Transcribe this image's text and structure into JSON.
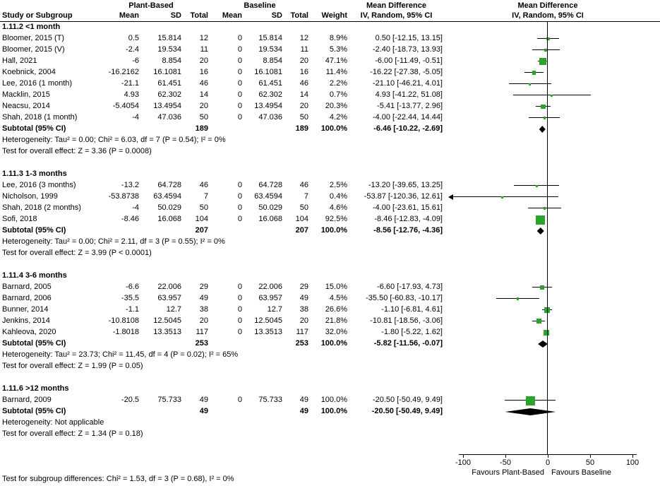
{
  "headers": {
    "group1": "Plant-Based",
    "group2": "Baseline",
    "md1": "Mean Difference",
    "md2": "Mean Difference",
    "study": "Study or Subgroup",
    "mean1": "Mean",
    "sd1": "SD",
    "total1": "Total",
    "mean2": "Mean",
    "sd2": "SD",
    "total2": "Total",
    "weight": "Weight",
    "ci1": "IV, Random, 95% CI",
    "ci2": "IV, Random, 95% CI"
  },
  "axis": {
    "ticks": [
      -100,
      -50,
      0,
      50,
      100
    ],
    "label_left": "Favours Plant-Based",
    "label_right": "Favours Baseline"
  },
  "footer": "Test for subgroup differences: Chi² = 1.53, df = 3 (P = 0.68), I² = 0%",
  "colors": {
    "square": "#2CA32C",
    "diamond": "#000000",
    "ci_line": "#000000",
    "axis": "#000000"
  },
  "chart_data": {
    "type": "forest",
    "effect_measure": "Mean Difference IV, Random, 95% CI",
    "x_range": [
      -100,
      100
    ],
    "subgroups": [
      {
        "label": "1.11.2 <1 month",
        "studies": [
          {
            "name": "Bloomer, 2015 (T)",
            "mean1": "0.5",
            "sd1": "15.814",
            "n1": "12",
            "mean2": "0",
            "sd2": "15.814",
            "n2": "12",
            "weight": "8.9%",
            "ci_text": "0.50 [-12.15, 13.15]",
            "md": 0.5,
            "lo": -12.15,
            "hi": 13.15,
            "w": 8.9
          },
          {
            "name": "Bloomer, 2015 (V)",
            "mean1": "-2.4",
            "sd1": "19.534",
            "n1": "11",
            "mean2": "0",
            "sd2": "19.534",
            "n2": "11",
            "weight": "5.3%",
            "ci_text": "-2.40 [-18.73, 13.93]",
            "md": -2.4,
            "lo": -18.73,
            "hi": 13.93,
            "w": 5.3
          },
          {
            "name": "Hall, 2021",
            "mean1": "-6",
            "sd1": "8.854",
            "n1": "20",
            "mean2": "0",
            "sd2": "8.854",
            "n2": "20",
            "weight": "47.1%",
            "ci_text": "-6.00 [-11.49, -0.51]",
            "md": -6.0,
            "lo": -11.49,
            "hi": -0.51,
            "w": 47.1
          },
          {
            "name": "Koebnick, 2004",
            "mean1": "-16.2162",
            "sd1": "16.1081",
            "n1": "16",
            "mean2": "0",
            "sd2": "16.1081",
            "n2": "16",
            "weight": "11.4%",
            "ci_text": "-16.22 [-27.38, -5.05]",
            "md": -16.22,
            "lo": -27.38,
            "hi": -5.05,
            "w": 11.4
          },
          {
            "name": "Lee, 2016 (1 month)",
            "mean1": "-21.1",
            "sd1": "61.451",
            "n1": "46",
            "mean2": "0",
            "sd2": "61.451",
            "n2": "46",
            "weight": "2.2%",
            "ci_text": "-21.10 [-46.21, 4.01]",
            "md": -21.1,
            "lo": -46.21,
            "hi": 4.01,
            "w": 2.2
          },
          {
            "name": "Macklin, 2015",
            "mean1": "4.93",
            "sd1": "62.302",
            "n1": "14",
            "mean2": "0",
            "sd2": "62.302",
            "n2": "14",
            "weight": "0.7%",
            "ci_text": "4.93 [-41.22, 51.08]",
            "md": 4.93,
            "lo": -41.22,
            "hi": 51.08,
            "w": 0.7
          },
          {
            "name": "Neacsu, 2014",
            "mean1": "-5.4054",
            "sd1": "13.4954",
            "n1": "20",
            "mean2": "0",
            "sd2": "13.4954",
            "n2": "20",
            "weight": "20.3%",
            "ci_text": "-5.41 [-13.77, 2.96]",
            "md": -5.41,
            "lo": -13.77,
            "hi": 2.96,
            "w": 20.3
          },
          {
            "name": "Shah, 2018 (1 month)",
            "mean1": "-4",
            "sd1": "47.036",
            "n1": "50",
            "mean2": "0",
            "sd2": "47.036",
            "n2": "50",
            "weight": "4.2%",
            "ci_text": "-4.00 [-22.44, 14.44]",
            "md": -4.0,
            "lo": -22.44,
            "hi": 14.44,
            "w": 4.2
          }
        ],
        "subtotal": {
          "label": "Subtotal (95% CI)",
          "n1": "189",
          "n2": "189",
          "weight": "100.0%",
          "ci_text": "-6.46 [-10.22, -2.69]",
          "md": -6.46,
          "lo": -10.22,
          "hi": -2.69
        },
        "heterogeneity": "Heterogeneity: Tau² = 0.00; Chi² = 6.03, df = 7 (P = 0.54); I² = 0%",
        "test": "Test for overall effect: Z = 3.36 (P = 0.0008)"
      },
      {
        "label": "1.11.3 1-3 months",
        "studies": [
          {
            "name": "Lee, 2016 (3 months)",
            "mean1": "-13.2",
            "sd1": "64.728",
            "n1": "46",
            "mean2": "0",
            "sd2": "64.728",
            "n2": "46",
            "weight": "2.5%",
            "ci_text": "-13.20 [-39.65, 13.25]",
            "md": -13.2,
            "lo": -39.65,
            "hi": 13.25,
            "w": 2.5
          },
          {
            "name": "Nicholson, 1999",
            "mean1": "-53.8738",
            "sd1": "63.4594",
            "n1": "7",
            "mean2": "0",
            "sd2": "63.4594",
            "n2": "7",
            "weight": "0.4%",
            "ci_text": "-53.87 [-120.36, 12.61]",
            "md": -53.87,
            "lo": -120.36,
            "hi": 12.61,
            "w": 0.4
          },
          {
            "name": "Shah, 2018 (2 months)",
            "mean1": "-4",
            "sd1": "50.029",
            "n1": "50",
            "mean2": "0",
            "sd2": "50.029",
            "n2": "50",
            "weight": "4.6%",
            "ci_text": "-4.00 [-23.61, 15.61]",
            "md": -4.0,
            "lo": -23.61,
            "hi": 15.61,
            "w": 4.6
          },
          {
            "name": "Sofi, 2018",
            "mean1": "-8.46",
            "sd1": "16.068",
            "n1": "104",
            "mean2": "0",
            "sd2": "16.068",
            "n2": "104",
            "weight": "92.5%",
            "ci_text": "-8.46 [-12.83, -4.09]",
            "md": -8.46,
            "lo": -12.83,
            "hi": -4.09,
            "w": 92.5
          }
        ],
        "subtotal": {
          "label": "Subtotal (95% CI)",
          "n1": "207",
          "n2": "207",
          "weight": "100.0%",
          "ci_text": "-8.56 [-12.76, -4.36]",
          "md": -8.56,
          "lo": -12.76,
          "hi": -4.36
        },
        "heterogeneity": "Heterogeneity: Tau² = 0.00; Chi² = 2.11, df = 3 (P = 0.55); I² = 0%",
        "test": "Test for overall effect: Z = 3.99 (P < 0.0001)"
      },
      {
        "label": "1.11.4 3-6 months",
        "studies": [
          {
            "name": "Barnard, 2005",
            "mean1": "-6.6",
            "sd1": "22.006",
            "n1": "29",
            "mean2": "0",
            "sd2": "22.006",
            "n2": "29",
            "weight": "15.0%",
            "ci_text": "-6.60 [-17.93, 4.73]",
            "md": -6.6,
            "lo": -17.93,
            "hi": 4.73,
            "w": 15.0
          },
          {
            "name": "Barnard, 2006",
            "mean1": "-35.5",
            "sd1": "63.957",
            "n1": "49",
            "mean2": "0",
            "sd2": "63.957",
            "n2": "49",
            "weight": "4.5%",
            "ci_text": "-35.50 [-60.83, -10.17]",
            "md": -35.5,
            "lo": -60.83,
            "hi": -10.17,
            "w": 4.5
          },
          {
            "name": "Bunner, 2014",
            "mean1": "-1.1",
            "sd1": "12.7",
            "n1": "38",
            "mean2": "0",
            "sd2": "12.7",
            "n2": "38",
            "weight": "26.6%",
            "ci_text": "-1.10 [-6.81, 4.61]",
            "md": -1.1,
            "lo": -6.81,
            "hi": 4.61,
            "w": 26.6
          },
          {
            "name": "Jenkins, 2014",
            "mean1": "-10.8108",
            "sd1": "12.5045",
            "n1": "20",
            "mean2": "0",
            "sd2": "12.5045",
            "n2": "20",
            "weight": "21.8%",
            "ci_text": "-10.81 [-18.56, -3.06]",
            "md": -10.81,
            "lo": -18.56,
            "hi": -3.06,
            "w": 21.8
          },
          {
            "name": "Kahleova, 2020",
            "mean1": "-1.8018",
            "sd1": "13.3513",
            "n1": "117",
            "mean2": "0",
            "sd2": "13.3513",
            "n2": "117",
            "weight": "32.0%",
            "ci_text": "-1.80 [-5.22, 1.62]",
            "md": -1.8,
            "lo": -5.22,
            "hi": 1.62,
            "w": 32.0
          }
        ],
        "subtotal": {
          "label": "Subtotal (95% CI)",
          "n1": "253",
          "n2": "253",
          "weight": "100.0%",
          "ci_text": "-5.82 [-11.56, -0.07]",
          "md": -5.82,
          "lo": -11.56,
          "hi": -0.07
        },
        "heterogeneity": "Heterogeneity: Tau² = 23.73; Chi² = 11.45, df = 4 (P = 0.02); I² = 65%",
        "test": "Test for overall effect: Z = 1.99 (P = 0.05)"
      },
      {
        "label": "1.11.6 >12 months",
        "studies": [
          {
            "name": "Barnard, 2009",
            "mean1": "-20.5",
            "sd1": "75.733",
            "n1": "49",
            "mean2": "0",
            "sd2": "75.733",
            "n2": "49",
            "weight": "100.0%",
            "ci_text": "-20.50 [-50.49, 9.49]",
            "md": -20.5,
            "lo": -50.49,
            "hi": 9.49,
            "w": 100.0
          }
        ],
        "subtotal": {
          "label": "Subtotal (95% CI)",
          "n1": "49",
          "n2": "49",
          "weight": "100.0%",
          "ci_text": "-20.50 [-50.49, 9.49]",
          "md": -20.5,
          "lo": -50.49,
          "hi": 9.49
        },
        "heterogeneity": "Heterogeneity: Not applicable",
        "test": "Test for overall effect: Z = 1.34 (P = 0.18)"
      }
    ]
  }
}
